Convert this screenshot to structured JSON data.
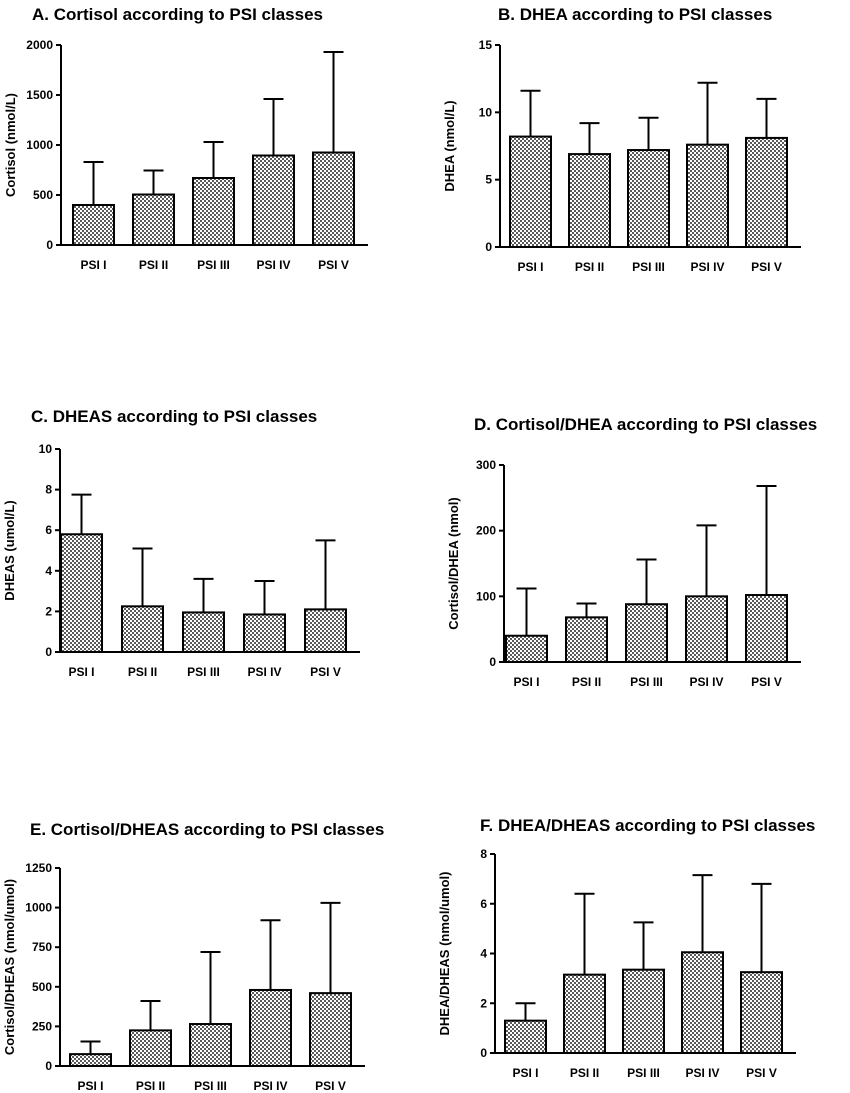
{
  "chart_data": [
    {
      "type": "bar",
      "title": "A. Cortisol according to PSI classes",
      "xlabel": "",
      "ylabel": "Cortisol (nmol/L)",
      "ylim": [
        0,
        2000
      ],
      "yticks": [
        0,
        500,
        1000,
        1500,
        2000
      ],
      "categories": [
        "PSI I",
        "PSI II",
        "PSI III",
        "PSI IV",
        "PSI V"
      ],
      "values": [
        400,
        505,
        670,
        895,
        925
      ],
      "error_upper": [
        830,
        745,
        1030,
        1460,
        1930
      ],
      "bar_pattern": "checkered",
      "grid": false
    },
    {
      "type": "bar",
      "title": "B. DHEA according to PSI classes",
      "xlabel": "",
      "ylabel": "DHEA (nmol/L)",
      "ylim": [
        0,
        15
      ],
      "yticks": [
        0,
        5,
        10,
        15
      ],
      "categories": [
        "PSI I",
        "PSI II",
        "PSI III",
        "PSI IV",
        "PSI V"
      ],
      "values": [
        8.2,
        6.9,
        7.2,
        7.6,
        8.1
      ],
      "error_upper": [
        11.6,
        9.2,
        9.6,
        12.2,
        11.0
      ],
      "bar_pattern": "checkered",
      "grid": false
    },
    {
      "type": "bar",
      "title": "C. DHEAS according to PSI classes",
      "xlabel": "",
      "ylabel": "DHEAS (umol/L)",
      "ylim": [
        0,
        10
      ],
      "yticks": [
        0,
        2,
        4,
        6,
        8,
        10
      ],
      "categories": [
        "PSI I",
        "PSI II",
        "PSI III",
        "PSI IV",
        "PSI V"
      ],
      "values": [
        5.8,
        2.25,
        1.95,
        1.85,
        2.1
      ],
      "error_upper": [
        7.75,
        5.1,
        3.6,
        3.5,
        5.5
      ],
      "bar_pattern": "checkered",
      "grid": false
    },
    {
      "type": "bar",
      "title": "D. Cortisol/DHEA according to PSI classes",
      "xlabel": "",
      "ylabel": "Cortisol/DHEA (nmol)",
      "ylim": [
        0,
        300
      ],
      "yticks": [
        0,
        100,
        200,
        300
      ],
      "categories": [
        "PSI I",
        "PSI II",
        "PSI III",
        "PSI IV",
        "PSI V"
      ],
      "values": [
        40,
        68,
        88,
        100,
        102
      ],
      "error_upper": [
        112,
        89,
        156,
        208,
        268
      ],
      "bar_pattern": "checkered",
      "grid": false
    },
    {
      "type": "bar",
      "title": "E. Cortisol/DHEAS according to PSI classes",
      "xlabel": "",
      "ylabel": "Cortisol/DHEAS (nmol/umol)",
      "ylim": [
        0,
        1250
      ],
      "yticks": [
        0,
        250,
        500,
        750,
        1000,
        1250
      ],
      "categories": [
        "PSI I",
        "PSI II",
        "PSI III",
        "PSI IV",
        "PSI V"
      ],
      "values": [
        75,
        225,
        265,
        480,
        460
      ],
      "error_upper": [
        155,
        410,
        720,
        920,
        1030
      ],
      "bar_pattern": "checkered",
      "grid": false
    },
    {
      "type": "bar",
      "title": "F. DHEA/DHEAS according to PSI classes",
      "xlabel": "",
      "ylabel": "DHEA/DHEAS (nmol/umol)",
      "ylim": [
        0,
        8
      ],
      "yticks": [
        0,
        2,
        4,
        6,
        8
      ],
      "categories": [
        "PSI I",
        "PSI II",
        "PSI III",
        "PSI IV",
        "PSI V"
      ],
      "values": [
        1.3,
        3.15,
        3.35,
        4.05,
        3.25
      ],
      "error_upper": [
        2.0,
        6.4,
        5.25,
        7.15,
        6.8
      ],
      "bar_pattern": "checkered",
      "grid": false
    }
  ]
}
